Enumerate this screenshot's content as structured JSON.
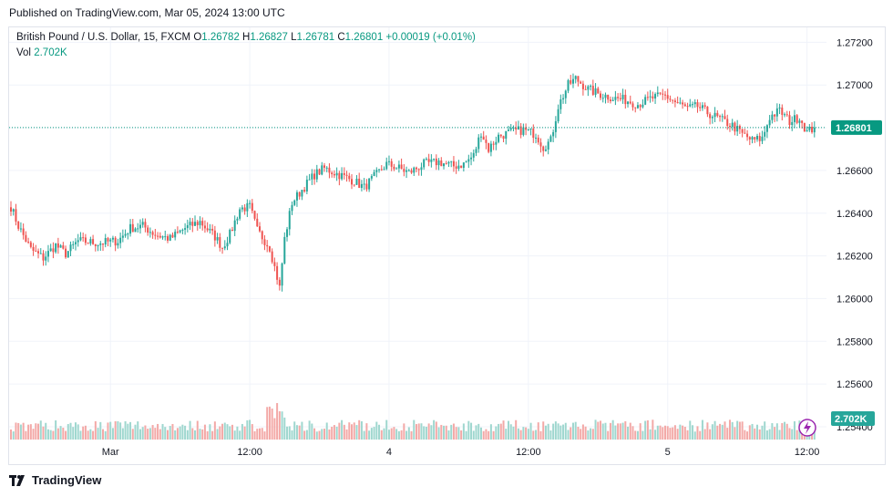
{
  "header": {
    "published": "Published on TradingView.com, Mar 05, 2024 13:00 UTC"
  },
  "legend": {
    "symbol": "British Pound / U.S. Dollar, 15, FXCM",
    "open_label": "O",
    "open": "1.26782",
    "high_label": "H",
    "high": "1.26827",
    "low_label": "L",
    "low": "1.26781",
    "close_label": "C",
    "close": "1.26801",
    "change": "+0.00019 (+0.01%)",
    "vol_label": "Vol",
    "vol": "2.702K"
  },
  "footer": {
    "brand": "TradingView",
    "logo_icon": "tradingview-logo-icon"
  },
  "lightning_icon": "lightning-icon",
  "colors": {
    "up": "#26a69a",
    "down": "#ef5350",
    "vol_up": "#9fd7cf",
    "vol_down": "#f3a9a7",
    "last_price": "#089981"
  },
  "chart_data": {
    "type": "candlestick",
    "symbol": "GBPUSD",
    "interval": "15",
    "y_ticks": [
      1.272,
      1.27,
      1.268,
      1.266,
      1.264,
      1.262,
      1.26,
      1.258,
      1.256,
      1.254
    ],
    "y_tick_labels": [
      "1.27200",
      "1.27000",
      "1.26800",
      "1.26600",
      "1.26400",
      "1.26200",
      "1.26000",
      "1.25800",
      "1.25600",
      "1.25400"
    ],
    "ylim": [
      1.2534,
      1.2727
    ],
    "x_ticks": [
      {
        "label": "Mar",
        "index": 40
      },
      {
        "label": "12:00",
        "index": 96
      },
      {
        "label": "4",
        "index": 152
      },
      {
        "label": "12:00",
        "index": 208
      },
      {
        "label": "5",
        "index": 264
      },
      {
        "label": "12:00",
        "index": 320
      }
    ],
    "last_price": 1.26801,
    "last_price_label": "1.26801",
    "last_volume_label": "2.702K",
    "volume_max": 5.5,
    "price_anchors": [
      [
        0,
        1.2643
      ],
      [
        3,
        1.2634
      ],
      [
        8,
        1.2623
      ],
      [
        13,
        1.2619
      ],
      [
        18,
        1.2625
      ],
      [
        22,
        1.2621
      ],
      [
        27,
        1.2627
      ],
      [
        35,
        1.2626
      ],
      [
        43,
        1.2627
      ],
      [
        48,
        1.2633
      ],
      [
        53,
        1.2634
      ],
      [
        58,
        1.263
      ],
      [
        64,
        1.2628
      ],
      [
        70,
        1.2633
      ],
      [
        76,
        1.2636
      ],
      [
        82,
        1.2629
      ],
      [
        85,
        1.2624
      ],
      [
        88,
        1.263
      ],
      [
        92,
        1.2642
      ],
      [
        96,
        1.2643
      ],
      [
        99,
        1.2632
      ],
      [
        104,
        1.2624
      ],
      [
        107,
        1.261
      ],
      [
        108,
        1.2605
      ],
      [
        110,
        1.2628
      ],
      [
        113,
        1.2645
      ],
      [
        117,
        1.2651
      ],
      [
        122,
        1.2658
      ],
      [
        126,
        1.2661
      ],
      [
        130,
        1.2659
      ],
      [
        134,
        1.2657
      ],
      [
        138,
        1.2655
      ],
      [
        142,
        1.2652
      ],
      [
        146,
        1.2657
      ],
      [
        151,
        1.2663
      ],
      [
        156,
        1.2661
      ],
      [
        160,
        1.2659
      ],
      [
        166,
        1.2663
      ],
      [
        172,
        1.2664
      ],
      [
        178,
        1.2662
      ],
      [
        182,
        1.2663
      ],
      [
        186,
        1.2667
      ],
      [
        189,
        1.2678
      ],
      [
        192,
        1.267
      ],
      [
        196,
        1.2676
      ],
      [
        201,
        1.2678
      ],
      [
        206,
        1.2679
      ],
      [
        211,
        1.2677
      ],
      [
        214,
        1.2671
      ],
      [
        217,
        1.2674
      ],
      [
        220,
        1.269
      ],
      [
        224,
        1.27
      ],
      [
        227,
        1.2703
      ],
      [
        232,
        1.2698
      ],
      [
        236,
        1.2696
      ],
      [
        242,
        1.2694
      ],
      [
        247,
        1.2693
      ],
      [
        252,
        1.2691
      ],
      [
        258,
        1.2694
      ],
      [
        263,
        1.2695
      ],
      [
        267,
        1.2692
      ],
      [
        272,
        1.2689
      ],
      [
        276,
        1.269
      ],
      [
        280,
        1.2687
      ],
      [
        285,
        1.2684
      ],
      [
        290,
        1.2681
      ],
      [
        294,
        1.2677
      ],
      [
        298,
        1.2674
      ],
      [
        302,
        1.2675
      ],
      [
        305,
        1.2685
      ],
      [
        309,
        1.2688
      ],
      [
        313,
        1.2683
      ],
      [
        317,
        1.2685
      ],
      [
        320,
        1.2678
      ],
      [
        323,
        1.268
      ]
    ]
  }
}
